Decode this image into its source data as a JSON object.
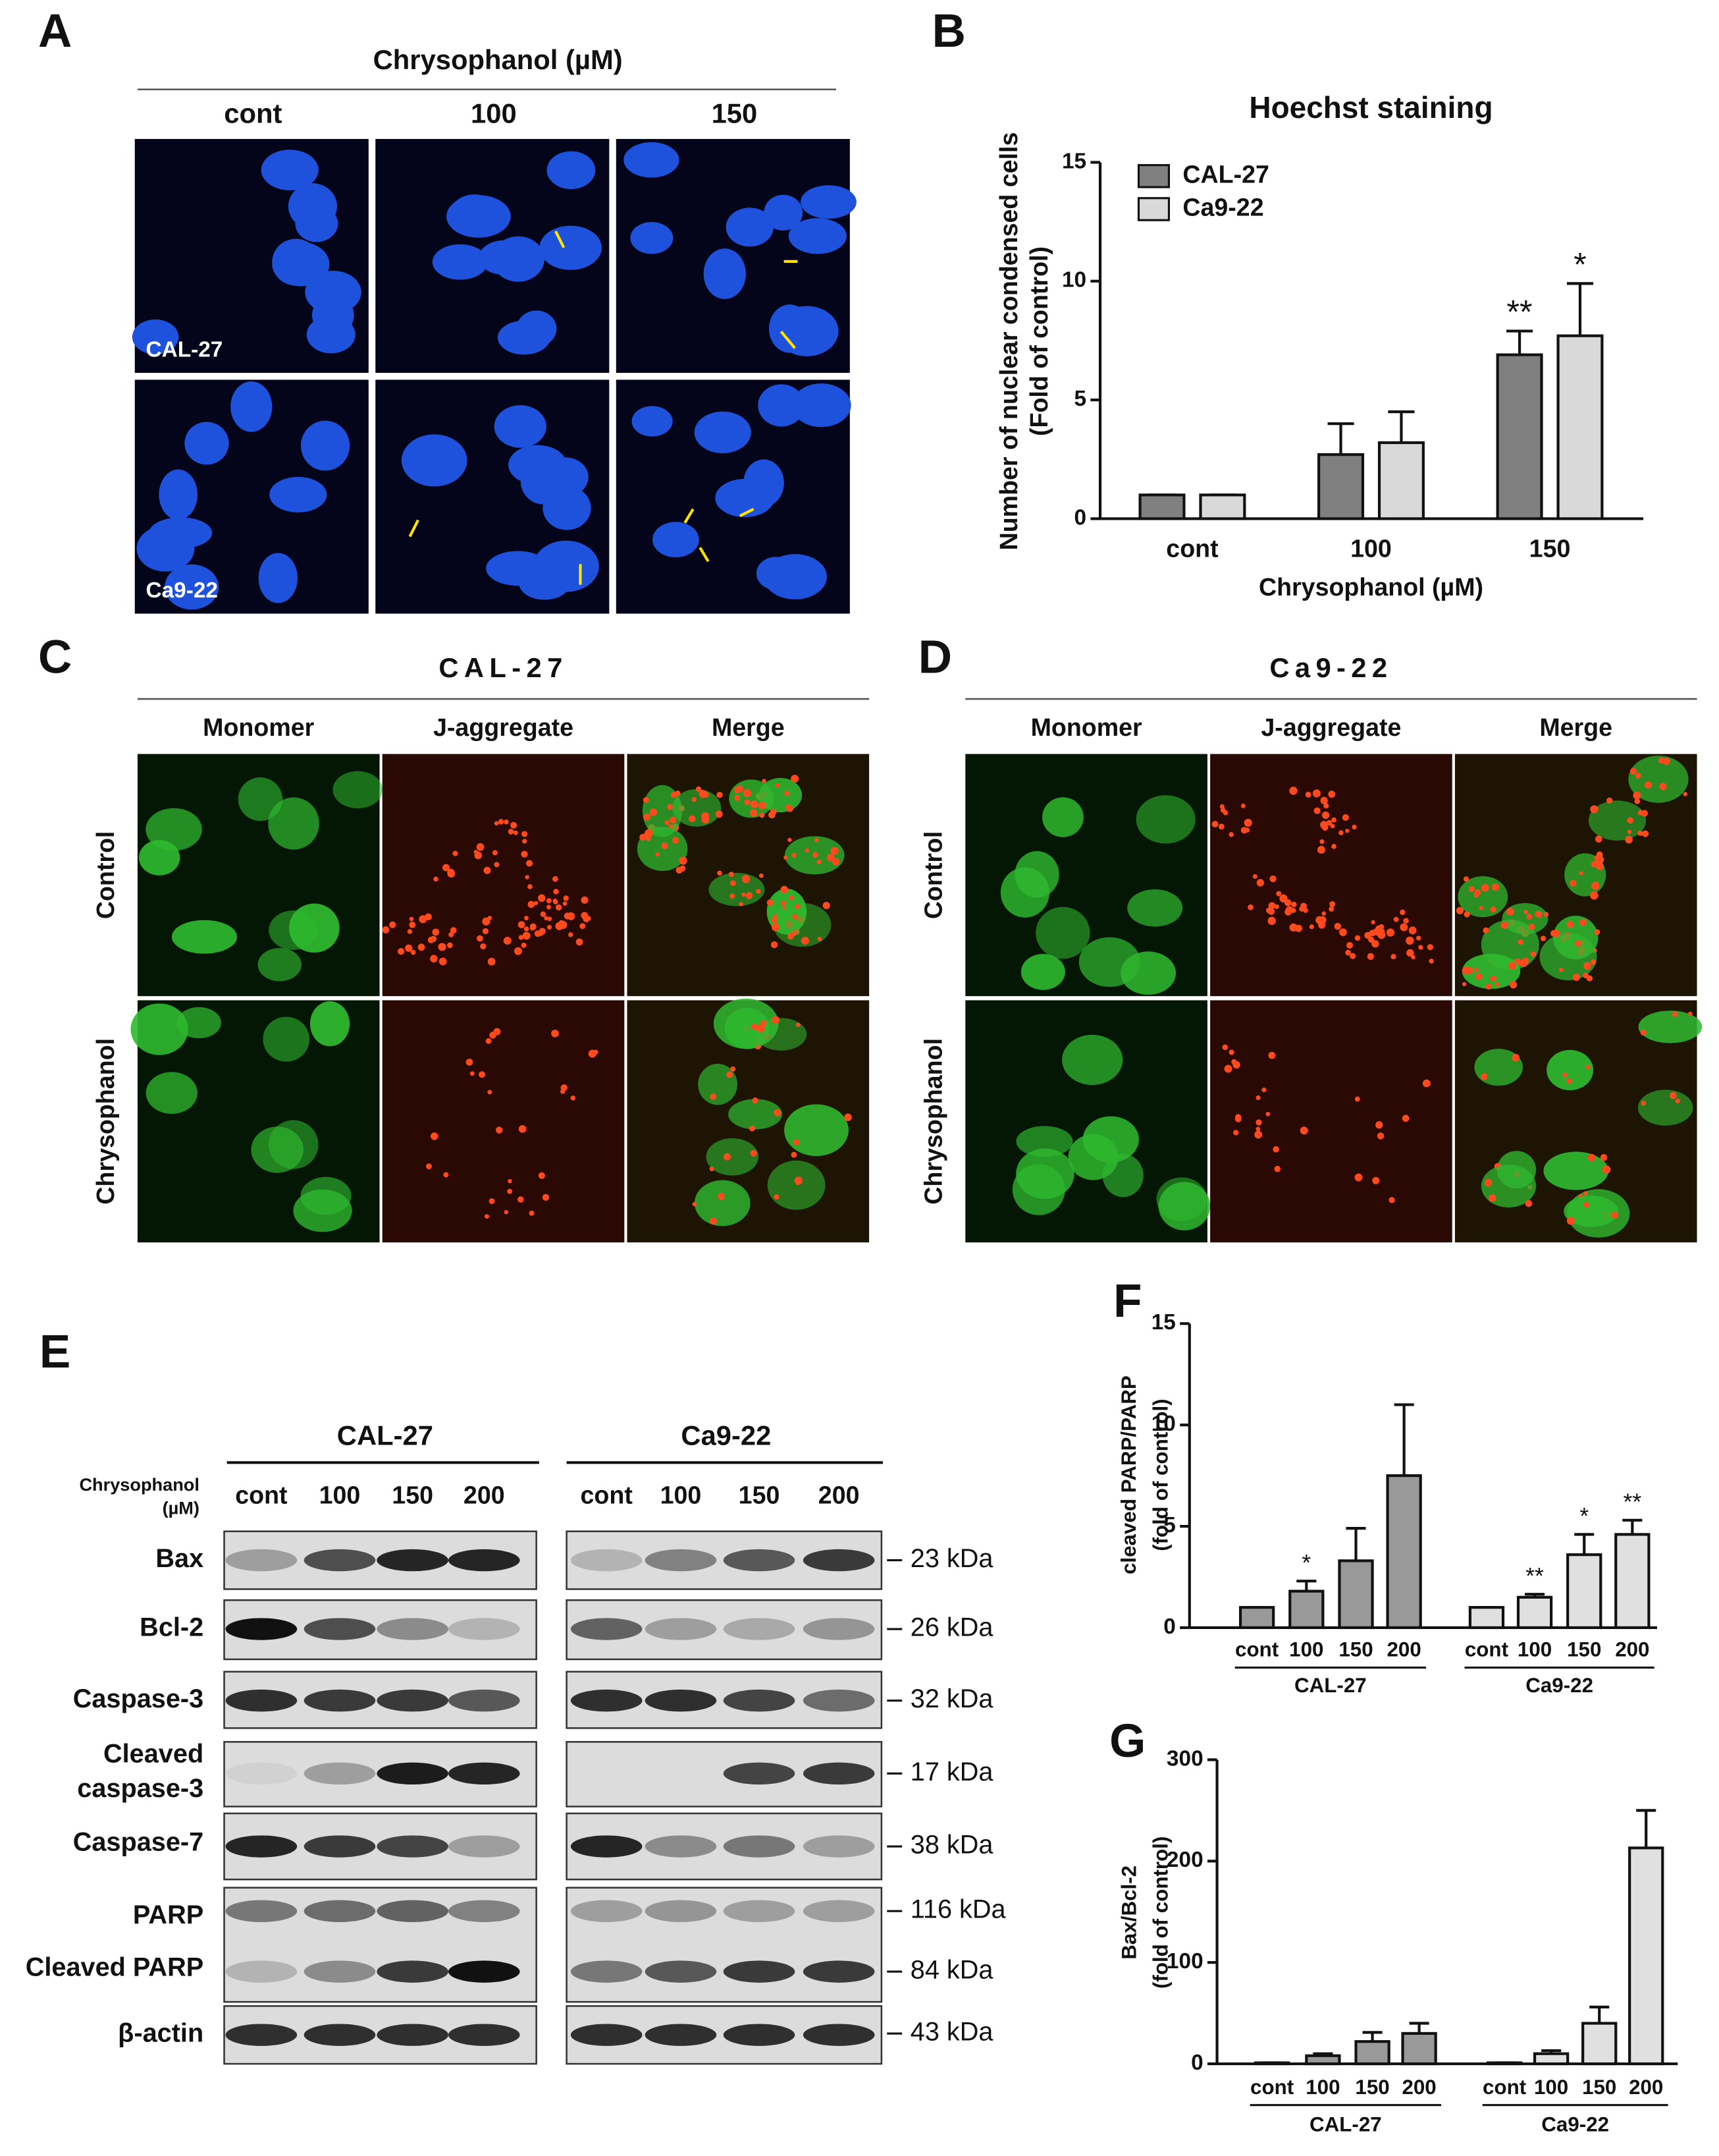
{
  "panels": {
    "A": {
      "label": "A",
      "title": "Chrysophanol  (µM)",
      "columns": [
        "cont",
        "100",
        "150"
      ],
      "rows": [
        "CAL-27",
        "Ca9-22"
      ]
    },
    "C": {
      "label": "C",
      "title": "CAL-27",
      "columns": [
        "Monomer",
        "J-aggregate",
        "Merge"
      ],
      "rows": [
        "Control",
        "Chrysophanol"
      ]
    },
    "D": {
      "label": "D",
      "title": "Ca9-22",
      "columns": [
        "Monomer",
        "J-aggregate",
        "Merge"
      ],
      "rows": [
        "Control",
        "Chrysophanol"
      ]
    },
    "E": {
      "label": "E",
      "groups": [
        "CAL-27",
        "Ca9-22"
      ],
      "treatment": [
        "Chrysophanol",
        "(µM)"
      ],
      "lanes": [
        "cont",
        "100",
        "150",
        "200"
      ],
      "blots": [
        {
          "name": [
            "Bax"
          ],
          "size": "23 kDa"
        },
        {
          "name": [
            "Bcl-2"
          ],
          "size": "26 kDa"
        },
        {
          "name": [
            "Caspase-3"
          ],
          "size": "32 kDa"
        },
        {
          "name": [
            "Cleaved",
            "caspase-3"
          ],
          "size": "17 kDa"
        },
        {
          "name": [
            "Caspase-7"
          ],
          "size": "38 kDa"
        },
        {
          "name": [
            "PARP"
          ],
          "size": "116 kDa"
        },
        {
          "name": [
            "Cleaved PARP"
          ],
          "size": "84 kDa"
        },
        {
          "name": [
            "β-actin"
          ],
          "size": "43 kDa"
        }
      ]
    }
  },
  "chart_data": [
    {
      "type": "bar",
      "label": "B",
      "title": "Hoechst staining",
      "ylabel": [
        "Number of nuclear condensed  cells",
        "(Fold of control)"
      ],
      "xlabel": "Chrysophanol (µM)",
      "categories": [
        "cont",
        "100",
        "150"
      ],
      "series": [
        {
          "name": "CAL-27",
          "color": "#808080",
          "values": [
            1,
            2.7,
            6.9
          ],
          "errors": [
            0,
            1.3,
            1.0
          ],
          "significance": [
            null,
            null,
            "**"
          ]
        },
        {
          "name": "Ca9-22",
          "color": "#d9d9d9",
          "values": [
            1,
            3.2,
            7.7
          ],
          "errors": [
            0,
            1.3,
            2.2
          ],
          "significance": [
            null,
            null,
            "*"
          ]
        }
      ],
      "ylim": [
        0,
        15
      ],
      "yticks": [
        0,
        5,
        10,
        15
      ]
    },
    {
      "type": "bar",
      "label": "F",
      "ylabel": [
        "cleaved PARP/PARP",
        "(fold of control)"
      ],
      "series": [
        {
          "name": "CAL-27",
          "color": "#999999",
          "categories": [
            "cont",
            "100",
            "150",
            "200"
          ],
          "values": [
            1,
            1.8,
            3.3,
            7.5
          ],
          "errors": [
            0,
            0.5,
            1.6,
            3.5
          ],
          "significance": [
            null,
            "*",
            null,
            null
          ]
        },
        {
          "name": "Ca9-22",
          "color": "#e0e0e0",
          "categories": [
            "cont",
            "100",
            "150",
            "200"
          ],
          "values": [
            1,
            1.5,
            3.6,
            4.6
          ],
          "errors": [
            0,
            0.15,
            1.0,
            0.7
          ],
          "significance": [
            null,
            "**",
            "*",
            "**"
          ]
        }
      ],
      "ylim": [
        0,
        15
      ],
      "yticks": [
        0,
        5,
        10,
        15
      ]
    },
    {
      "type": "bar",
      "label": "G",
      "ylabel": [
        "Bax/Bcl-2",
        "(fold of control)"
      ],
      "series": [
        {
          "name": "CAL-27",
          "color": "#999999",
          "categories": [
            "cont",
            "100",
            "150",
            "200"
          ],
          "values": [
            1,
            8,
            22,
            30
          ],
          "errors": [
            0,
            2,
            9,
            10
          ],
          "significance": [
            null,
            null,
            null,
            null
          ]
        },
        {
          "name": "Ca9-22",
          "color": "#e0e0e0",
          "categories": [
            "cont",
            "100",
            "150",
            "200"
          ],
          "values": [
            1,
            10,
            40,
            213
          ],
          "errors": [
            0,
            3,
            16,
            37
          ],
          "significance": [
            null,
            null,
            null,
            null
          ]
        }
      ],
      "ylim": [
        0,
        300
      ],
      "yticks": [
        0,
        100,
        200,
        300
      ]
    }
  ]
}
